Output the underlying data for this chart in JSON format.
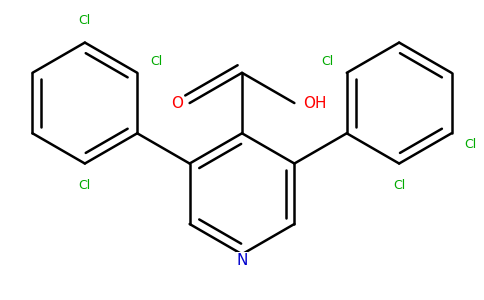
{
  "background_color": "#ffffff",
  "atom_colors": {
    "C": "#000000",
    "N": "#0000cd",
    "O": "#ff0000",
    "Cl": "#00aa00"
  },
  "bond_color": "#000000",
  "bond_width": 1.8,
  "dbo": 0.055,
  "figsize": [
    4.84,
    3.0
  ],
  "dpi": 100,
  "scale": 1.0
}
